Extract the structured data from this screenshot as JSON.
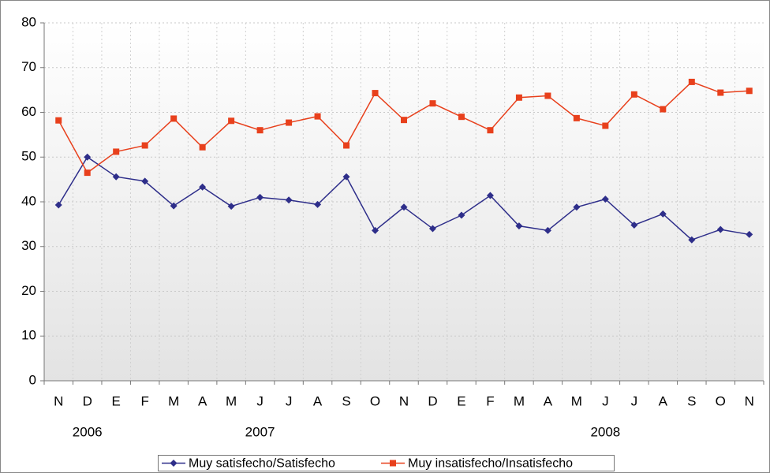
{
  "chart_data": {
    "type": "line",
    "categories": [
      "N",
      "D",
      "E",
      "F",
      "M",
      "A",
      "M",
      "J",
      "J",
      "A",
      "S",
      "O",
      "N",
      "D",
      "E",
      "F",
      "M",
      "A",
      "M",
      "J",
      "J",
      "A",
      "S",
      "O",
      "N"
    ],
    "group_labels": [
      null,
      "2006",
      null,
      null,
      null,
      null,
      null,
      "2007",
      null,
      null,
      null,
      null,
      null,
      null,
      null,
      null,
      null,
      null,
      null,
      "2008",
      null,
      null,
      null,
      null,
      null
    ],
    "series": [
      {
        "name": "Muy satisfecho/Satisfecho",
        "color": "#2e2e8a",
        "marker": "diamond",
        "values": [
          39.3,
          50,
          45.6,
          44.6,
          39.1,
          43.3,
          39,
          41,
          40.4,
          39.4,
          45.6,
          33.6,
          38.8,
          34,
          37,
          41.4,
          34.6,
          33.6,
          38.8,
          40.6,
          34.8,
          37.3,
          31.5,
          33.8,
          32.7
        ]
      },
      {
        "name": "Muy insatisfecho/Insatisfecho",
        "color": "#e8401c",
        "marker": "square",
        "values": [
          58.2,
          46.5,
          51.2,
          52.6,
          58.6,
          52.2,
          58.1,
          56,
          57.7,
          59.1,
          52.6,
          64.3,
          58.3,
          62,
          59,
          56,
          63.3,
          63.7,
          58.7,
          57,
          64,
          60.7,
          66.8,
          64.4,
          64.8
        ]
      }
    ],
    "ylim": [
      0,
      80
    ],
    "yticks": [
      0,
      10,
      20,
      30,
      40,
      50,
      60,
      70,
      80
    ],
    "grid": true,
    "legend": "bottom"
  }
}
